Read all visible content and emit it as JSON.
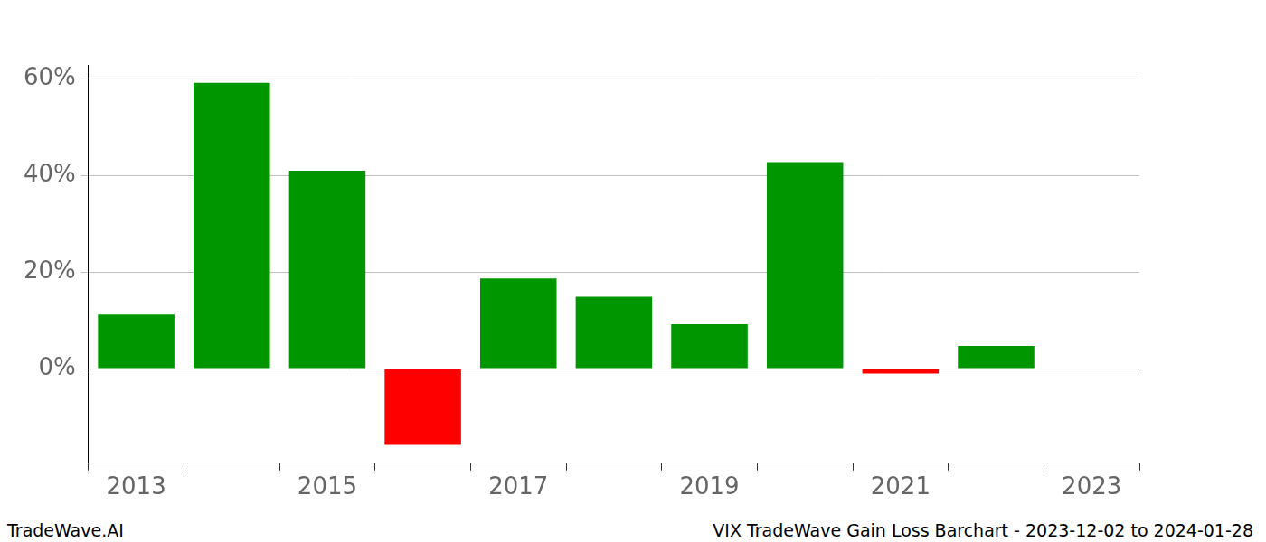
{
  "chart_data": {
    "type": "bar",
    "categories": [
      "2013",
      null,
      "2015",
      null,
      "2017",
      null,
      "2019",
      null,
      "2021",
      null,
      "2023"
    ],
    "values": [
      11.2,
      59.2,
      41.0,
      -15.8,
      18.7,
      14.9,
      9.2,
      42.8,
      -1.0,
      4.7,
      null
    ],
    "colors": [
      "#009600",
      "#009600",
      "#009600",
      "#ff0000",
      "#009600",
      "#009600",
      "#009600",
      "#009600",
      "#ff0000",
      "#009600",
      "#009600"
    ],
    "ylim": [
      -19.6,
      62.9
    ],
    "yticks": [
      {
        "value": 0,
        "label": "0%"
      },
      {
        "value": 20,
        "label": "20%"
      },
      {
        "value": 40,
        "label": "40%"
      },
      {
        "value": 60,
        "label": "60%"
      }
    ],
    "grid": true,
    "annotations": [
      "TradeWave.AI",
      "VIX TradeWave Gain Loss Barchart - 2023-12-02 to 2024-01-28"
    ]
  }
}
